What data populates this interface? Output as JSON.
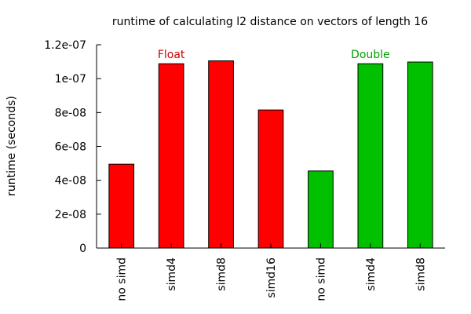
{
  "chart_data": {
    "type": "bar",
    "title": "runtime of calculating l2 distance on vectors of length 16",
    "xlabel": "",
    "ylabel": "runtime (seconds)",
    "ylim": [
      0,
      1.2e-07
    ],
    "yticks": [
      0,
      2e-08,
      4e-08,
      6e-08,
      8e-08,
      1e-07,
      1.2e-07
    ],
    "ytick_labels": [
      "0",
      "2e-08",
      "4e-08",
      "6e-08",
      "8e-08",
      "1e-07",
      "1.2e-07"
    ],
    "categories": [
      "no simd",
      "simd4",
      "simd8",
      "simd16",
      "no simd",
      "simd4",
      "simd8"
    ],
    "values": [
      4.95e-08,
      1.088e-07,
      1.105e-07,
      8.15e-08,
      4.55e-08,
      1.088e-07,
      1.098e-07
    ],
    "groups": [
      {
        "name": "Float",
        "color": "#ff0000",
        "label_color": "#cc0000",
        "indices": [
          0,
          1,
          2,
          3
        ]
      },
      {
        "name": "Double",
        "color": "#00c000",
        "label_color": "#00a000",
        "indices": [
          4,
          5,
          6
        ]
      }
    ],
    "grid": false,
    "legend": "none"
  }
}
